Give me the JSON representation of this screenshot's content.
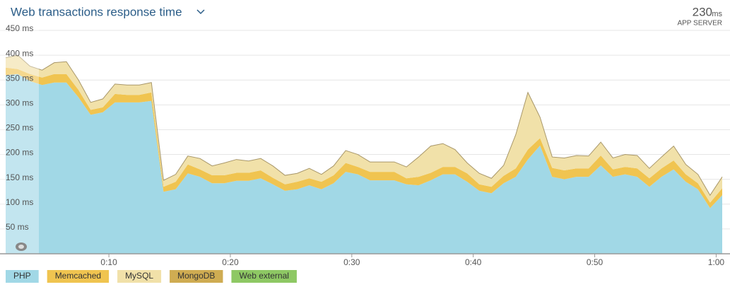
{
  "chart_data": {
    "type": "stacked-area",
    "title": "Web transactions response time",
    "current_value": 230,
    "current_unit": "ms",
    "server_label": "APP SERVER",
    "x": [
      1.5,
      2.5,
      3.5,
      4.5,
      5.5,
      6.5,
      7.5,
      8.5,
      9.5,
      10.5,
      11.5,
      12.5,
      13.5,
      14.5,
      15.5,
      16.5,
      17.5,
      18.5,
      19.5,
      20.5,
      21.5,
      22.5,
      23.5,
      24.5,
      25.5,
      26.5,
      27.5,
      28.5,
      29.5,
      30.5,
      31.5,
      32.5,
      33.5,
      34.5,
      35.5,
      36.5,
      37.5,
      38.5,
      39.5,
      40.5,
      41.5,
      42.5,
      43.5,
      44.5,
      45.5,
      46.5,
      47.5,
      48.5,
      49.5,
      50.5,
      51.5,
      52.5,
      53.5,
      54.5,
      55.5,
      56.5,
      57.5,
      58.5,
      59.5,
      60.5
    ],
    "series": [
      {
        "name": "PHP",
        "color": "#a1d8e6",
        "values": [
          360,
          362,
          348,
          340,
          345,
          345,
          315,
          280,
          285,
          305,
          305,
          305,
          308,
          125,
          130,
          162,
          155,
          142,
          142,
          147,
          147,
          152,
          140,
          127,
          130,
          138,
          130,
          142,
          165,
          160,
          148,
          148,
          148,
          140,
          138,
          148,
          160,
          160,
          145,
          127,
          122,
          142,
          155,
          190,
          218,
          155,
          150,
          155,
          155,
          178,
          155,
          160,
          155,
          135,
          155,
          170,
          145,
          130,
          92,
          118
        ]
      },
      {
        "name": "Memcached",
        "color": "#f0c450",
        "values": [
          15,
          10,
          14,
          15,
          17,
          17,
          15,
          10,
          10,
          17,
          15,
          15,
          17,
          10,
          15,
          18,
          15,
          16,
          16,
          16,
          16,
          16,
          13,
          13,
          15,
          14,
          15,
          16,
          18,
          15,
          17,
          17,
          17,
          12,
          17,
          15,
          15,
          15,
          17,
          13,
          13,
          15,
          17,
          20,
          15,
          18,
          18,
          17,
          17,
          20,
          15,
          15,
          17,
          17,
          17,
          18,
          15,
          12,
          11,
          14
        ]
      },
      {
        "name": "MySQL",
        "color": "#f1e1a9",
        "values": [
          20,
          28,
          16,
          15,
          23,
          25,
          20,
          15,
          17,
          20,
          20,
          20,
          20,
          13,
          15,
          17,
          22,
          19,
          25,
          27,
          24,
          24,
          24,
          18,
          17,
          20,
          15,
          19,
          25,
          25,
          20,
          20,
          20,
          23,
          40,
          54,
          47,
          35,
          21,
          22,
          17,
          21,
          68,
          115,
          42,
          22,
          25,
          26,
          25,
          27,
          23,
          25,
          26,
          20,
          23,
          29,
          20,
          18,
          15,
          23
        ]
      },
      {
        "name": "MongoDB",
        "color": "#cfac52",
        "values": [
          0,
          0,
          0,
          0,
          0,
          0,
          0,
          0,
          0,
          0,
          0,
          0,
          0,
          0,
          0,
          0,
          0,
          0,
          0,
          0,
          0,
          0,
          0,
          0,
          0,
          0,
          0,
          0,
          0,
          0,
          0,
          0,
          0,
          0,
          0,
          0,
          0,
          0,
          0,
          0,
          0,
          0,
          0,
          0,
          0,
          0,
          0,
          0,
          0,
          0,
          0,
          0,
          0,
          0,
          0,
          0,
          0,
          0,
          0,
          0
        ]
      },
      {
        "name": "Web external",
        "color": "#8ec864",
        "values": [
          0,
          0,
          0,
          0,
          0,
          0,
          0,
          0,
          0,
          0,
          0,
          0,
          0,
          0,
          0,
          0,
          0,
          0,
          0,
          0,
          0,
          0,
          0,
          0,
          0,
          0,
          0,
          0,
          0,
          0,
          0,
          0,
          0,
          0,
          0,
          0,
          0,
          0,
          0,
          0,
          0,
          0,
          0,
          0,
          0,
          0,
          0,
          0,
          0,
          0,
          0,
          0,
          0,
          0,
          0,
          0,
          0,
          0,
          0,
          0
        ]
      }
    ],
    "xlim": [
      1.5,
      60.5
    ],
    "xticks": [
      {
        "value": 10,
        "label": "0:10"
      },
      {
        "value": 20,
        "label": "0:20"
      },
      {
        "value": 30,
        "label": "0:30"
      },
      {
        "value": 40,
        "label": "0:40"
      },
      {
        "value": 50,
        "label": "0:50"
      },
      {
        "value": 60,
        "label": "1:00"
      }
    ],
    "ylim": [
      0,
      450
    ],
    "yticks": [
      {
        "value": 50,
        "label": "50 ms"
      },
      {
        "value": 100,
        "label": "100 ms"
      },
      {
        "value": 150,
        "label": "150 ms"
      },
      {
        "value": 200,
        "label": "200 ms"
      },
      {
        "value": 250,
        "label": "250 ms"
      },
      {
        "value": 300,
        "label": "300 ms"
      },
      {
        "value": 350,
        "label": "350 ms"
      },
      {
        "value": 400,
        "label": "400 ms"
      },
      {
        "value": 450,
        "label": "450 ms"
      }
    ],
    "grid": true
  }
}
